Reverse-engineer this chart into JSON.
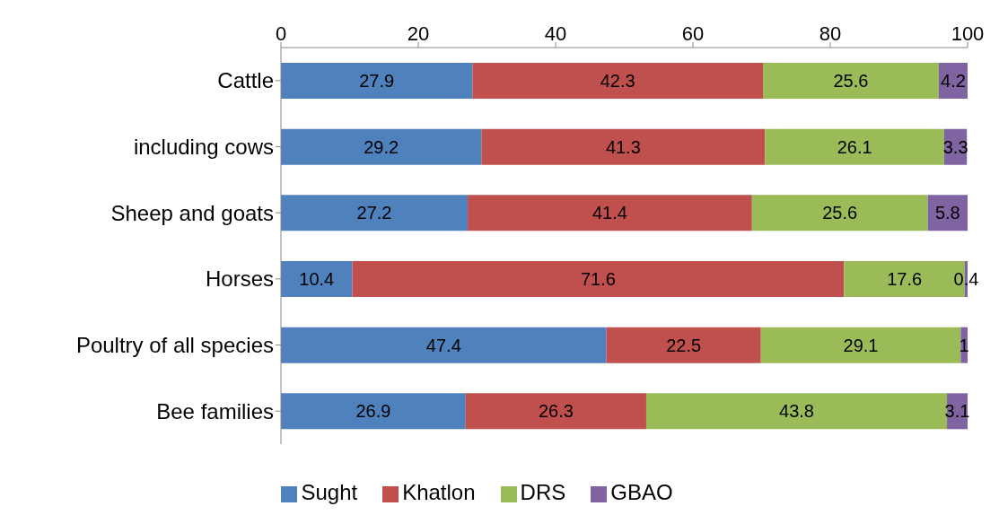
{
  "chart_data": {
    "type": "bar",
    "orientation": "horizontal",
    "stacked": true,
    "data_labels": true,
    "legend": "bottom",
    "grid": false,
    "categories": [
      "Cattle",
      "including cows",
      "Sheep and goats",
      "Horses",
      "Poultry of all species",
      "Bee families"
    ],
    "xlim": [
      0,
      100
    ],
    "xticks": [
      0,
      20,
      40,
      60,
      80,
      100
    ],
    "series": [
      {
        "name": "Sught",
        "color": "#4f81bd",
        "values": [
          27.9,
          29.2,
          27.2,
          10.4,
          47.4,
          26.9
        ]
      },
      {
        "name": "Khatlon",
        "color": "#c0504d",
        "values": [
          42.3,
          41.3,
          41.4,
          71.6,
          22.5,
          26.3
        ]
      },
      {
        "name": "DRS",
        "color": "#9bbb59",
        "values": [
          25.6,
          26.1,
          25.6,
          17.6,
          29.1,
          43.8
        ]
      },
      {
        "name": "GBAO",
        "color": "#8064a2",
        "values": [
          4.2,
          3.3,
          5.8,
          0.4,
          1,
          3.1
        ]
      }
    ]
  }
}
